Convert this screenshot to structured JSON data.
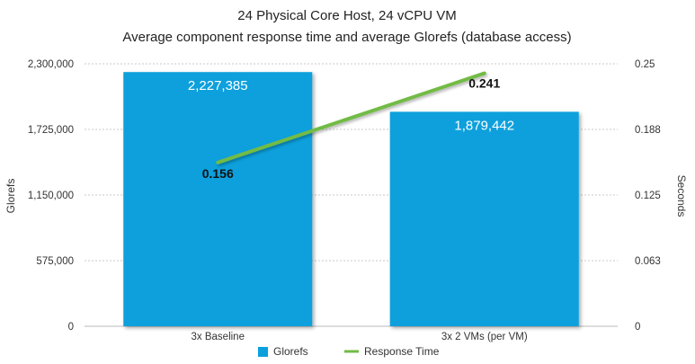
{
  "chart_data": {
    "type": "bar",
    "title": "24 Physical Core Host, 24 vCPU VM",
    "subtitle": "Average component response time and average Glorefs (database access)",
    "categories": [
      "3x Baseline",
      "3x 2 VMs (per VM)"
    ],
    "series": [
      {
        "name": "Glorefs",
        "type": "bar",
        "axis": "left",
        "values": [
          2227385,
          1879442
        ],
        "labels": [
          "2,227,385",
          "1,879,442"
        ],
        "color": "#0aa0dc"
      },
      {
        "name": "Response Time",
        "type": "line",
        "axis": "right",
        "values": [
          0.156,
          0.241
        ],
        "labels": [
          "0.156",
          "0.241"
        ],
        "color": "#72bb44"
      }
    ],
    "ylabel": "Glorefs",
    "y2label": "Seconds",
    "ylim": [
      0,
      2300000
    ],
    "y2lim": [
      0,
      0.25
    ],
    "yticks": [
      "0",
      "575,000",
      "1,150,000",
      "1,725,000",
      "2,300,000"
    ],
    "y2ticks": [
      "0",
      "0.063",
      "0.125",
      "0.188",
      "0.25"
    ],
    "grid": true,
    "legend_position": "bottom-center"
  }
}
